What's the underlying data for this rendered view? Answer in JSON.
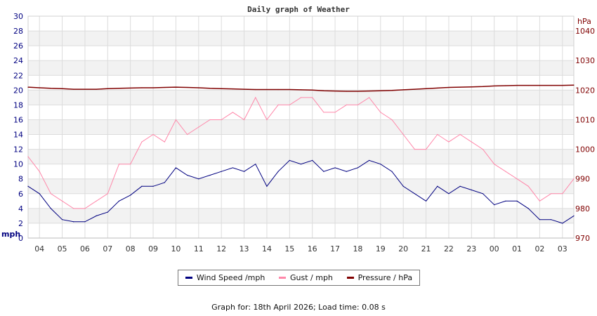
{
  "chart_data": {
    "type": "line",
    "title": "Daily graph of Weather",
    "y_left": {
      "label": "mph",
      "range": [
        0,
        30
      ],
      "ticks": [
        0,
        2,
        4,
        6,
        8,
        10,
        12,
        14,
        16,
        18,
        20,
        22,
        24,
        26,
        28,
        30
      ]
    },
    "y_right": {
      "label": "hPa",
      "range": [
        970,
        1045
      ],
      "ticks": [
        970,
        980,
        990,
        1000,
        1010,
        1020,
        1030,
        1040
      ]
    },
    "x": {
      "range": [
        "03:30",
        "03:30"
      ],
      "tick_labels": [
        "04",
        "05",
        "06",
        "07",
        "08",
        "09",
        "10",
        "11",
        "12",
        "13",
        "14",
        "15",
        "16",
        "17",
        "18",
        "19",
        "20",
        "21",
        "22",
        "23",
        "00",
        "01",
        "02",
        "03"
      ]
    },
    "grid": true,
    "legend_placement": "bottom",
    "times": [
      "03:30",
      "04:00",
      "04:30",
      "05:00",
      "05:30",
      "06:00",
      "06:30",
      "07:00",
      "07:30",
      "08:00",
      "08:30",
      "09:00",
      "09:30",
      "10:00",
      "10:30",
      "11:00",
      "11:30",
      "12:00",
      "12:30",
      "13:00",
      "13:30",
      "14:00",
      "14:30",
      "15:00",
      "15:30",
      "16:00",
      "16:30",
      "17:00",
      "17:30",
      "18:00",
      "18:30",
      "19:00",
      "19:30",
      "20:00",
      "20:30",
      "21:00",
      "21:30",
      "22:00",
      "22:30",
      "23:00",
      "23:30",
      "00:00",
      "00:30",
      "01:00",
      "01:30",
      "02:00",
      "02:30",
      "03:00",
      "03:30"
    ],
    "series": [
      {
        "name": "Wind Speed /mph",
        "axis": "left",
        "color": "#000080",
        "values": [
          7,
          6,
          4,
          2.5,
          2.2,
          2.2,
          3,
          3.5,
          5,
          5.8,
          7,
          7,
          7.5,
          9.5,
          8.5,
          8,
          8.5,
          9,
          9.5,
          9,
          10,
          7,
          9,
          10.5,
          10,
          10.5,
          9,
          9.5,
          9,
          9.5,
          10.5,
          10,
          9,
          7,
          6,
          5,
          7,
          6,
          7,
          6.5,
          6,
          4.5,
          5,
          5,
          4,
          2.5,
          2.5,
          2,
          3
        ]
      },
      {
        "name": "Gust / mph",
        "axis": "left",
        "color": "#ff88aa",
        "values": [
          11,
          9,
          6,
          5,
          4,
          4,
          5,
          6,
          10,
          10,
          13,
          14,
          13,
          16,
          14,
          15,
          16,
          16,
          17,
          16,
          19,
          16,
          18,
          18,
          19,
          19,
          17,
          17,
          18,
          18,
          19,
          17,
          16,
          14,
          12,
          12,
          14,
          13,
          14,
          13,
          12,
          10,
          9,
          8,
          7,
          5,
          6,
          6,
          8
        ]
      },
      {
        "name": "Pressure / hPa",
        "axis": "right",
        "color": "#800000",
        "values": [
          1021,
          1020.8,
          1020.6,
          1020.5,
          1020.3,
          1020.3,
          1020.3,
          1020.5,
          1020.6,
          1020.7,
          1020.8,
          1020.8,
          1020.9,
          1021,
          1020.9,
          1020.8,
          1020.6,
          1020.5,
          1020.4,
          1020.3,
          1020.2,
          1020.2,
          1020.2,
          1020.2,
          1020.1,
          1020,
          1019.8,
          1019.7,
          1019.6,
          1019.6,
          1019.7,
          1019.8,
          1019.9,
          1020.1,
          1020.3,
          1020.5,
          1020.7,
          1020.9,
          1021,
          1021.1,
          1021.2,
          1021.4,
          1021.5,
          1021.6,
          1021.6,
          1021.6,
          1021.6,
          1021.6,
          1021.7
        ]
      }
    ]
  },
  "footer": "Graph for: 18th April 2026; Load time: 0.08 s"
}
